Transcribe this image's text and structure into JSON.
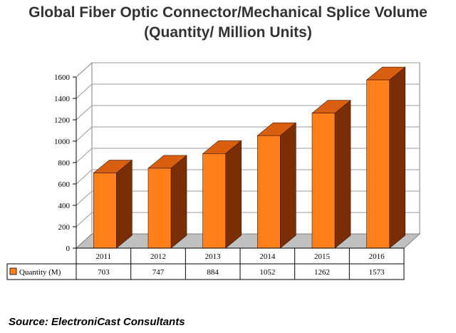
{
  "title_line1": "Global Fiber Optic Connector/Mechanical Splice Volume",
  "title_line2": "(Quantity/ Million Units)",
  "source": "Source: ElectroniCast Consultants",
  "colors": {
    "bar_front": "#ff7f1a",
    "bar_side": "#7a2e06",
    "bar_top": "#d95f10",
    "legend_swatch": "#ff7f1a"
  },
  "chart_data": {
    "type": "bar",
    "title": "Global Fiber Optic Connector/Mechanical Splice Volume (Quantity/ Million Units)",
    "categories": [
      "2011",
      "2012",
      "2013",
      "2014",
      "2015",
      "2016"
    ],
    "series": [
      {
        "name": "Quantity (M)",
        "values": [
          703,
          747,
          884,
          1052,
          1262,
          1573
        ]
      }
    ],
    "ylim": [
      0,
      1600
    ],
    "yticks": [
      0,
      200,
      400,
      600,
      800,
      1000,
      1200,
      1400,
      1600
    ],
    "grid": true,
    "legend": "data-table",
    "three_d": true
  }
}
